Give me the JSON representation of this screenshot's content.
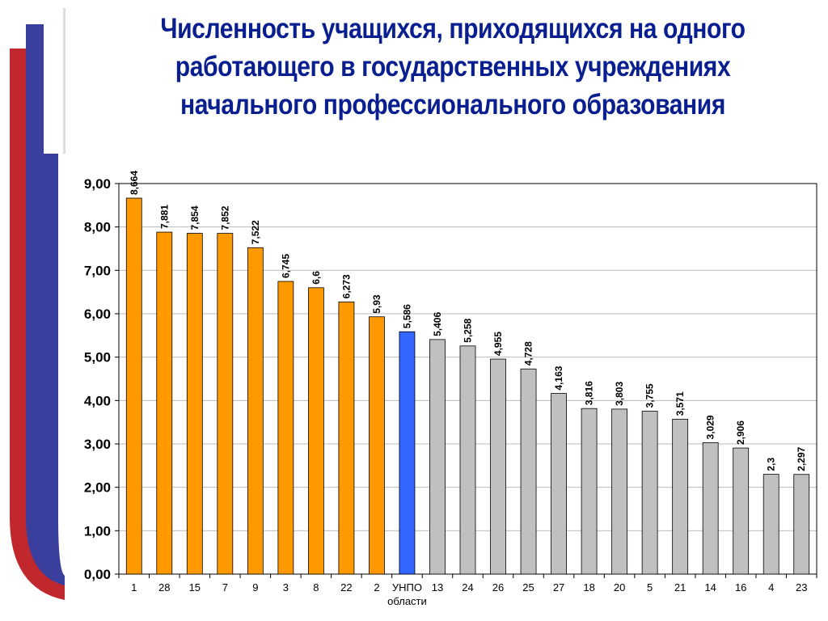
{
  "colors": {
    "title": "#0a1f8f",
    "bar_orange": "#ff9900",
    "bar_blue": "#3366ff",
    "bar_gray": "#c0c0c0",
    "stripe_red": "#c0282d",
    "stripe_blue": "#3a3f9e"
  },
  "chart_data": {
    "type": "bar",
    "title": "Численность учащихся, приходящихся на одного работающего в государственных учреждениях начального профессионального образования",
    "categories": [
      "1",
      "28",
      "15",
      "7",
      "9",
      "3",
      "8",
      "22",
      "2",
      "УНПО области",
      "13",
      "24",
      "26",
      "25",
      "27",
      "18",
      "20",
      "5",
      "21",
      "14",
      "16",
      "4",
      "23"
    ],
    "values": [
      8.664,
      7.881,
      7.854,
      7.852,
      7.522,
      6.745,
      6.6,
      6.273,
      5.93,
      5.586,
      5.406,
      5.258,
      4.955,
      4.728,
      4.163,
      3.816,
      3.803,
      3.755,
      3.571,
      3.029,
      2.906,
      2.3,
      2.297
    ],
    "value_labels": [
      "8,664",
      "7,881",
      "7,854",
      "7,852",
      "7,522",
      "6,745",
      "6,6",
      "6,273",
      "5,93",
      "5,586",
      "5,406",
      "5,258",
      "4,955",
      "4,728",
      "4,163",
      "3,816",
      "3,803",
      "3,755",
      "3,571",
      "3,029",
      "2,906",
      "2,3",
      "2,297"
    ],
    "bar_colors": [
      "orange",
      "orange",
      "orange",
      "orange",
      "orange",
      "orange",
      "orange",
      "orange",
      "orange",
      "blue",
      "gray",
      "gray",
      "gray",
      "gray",
      "gray",
      "gray",
      "gray",
      "gray",
      "gray",
      "gray",
      "gray",
      "gray",
      "gray"
    ],
    "ylim": [
      0,
      9
    ],
    "yticks": [
      "0,00",
      "1,00",
      "2,00",
      "3,00",
      "4,00",
      "5,00",
      "6,00",
      "7,00",
      "8,00",
      "9,00"
    ],
    "grid": true,
    "legend": "none",
    "xlabel": "",
    "ylabel": ""
  }
}
